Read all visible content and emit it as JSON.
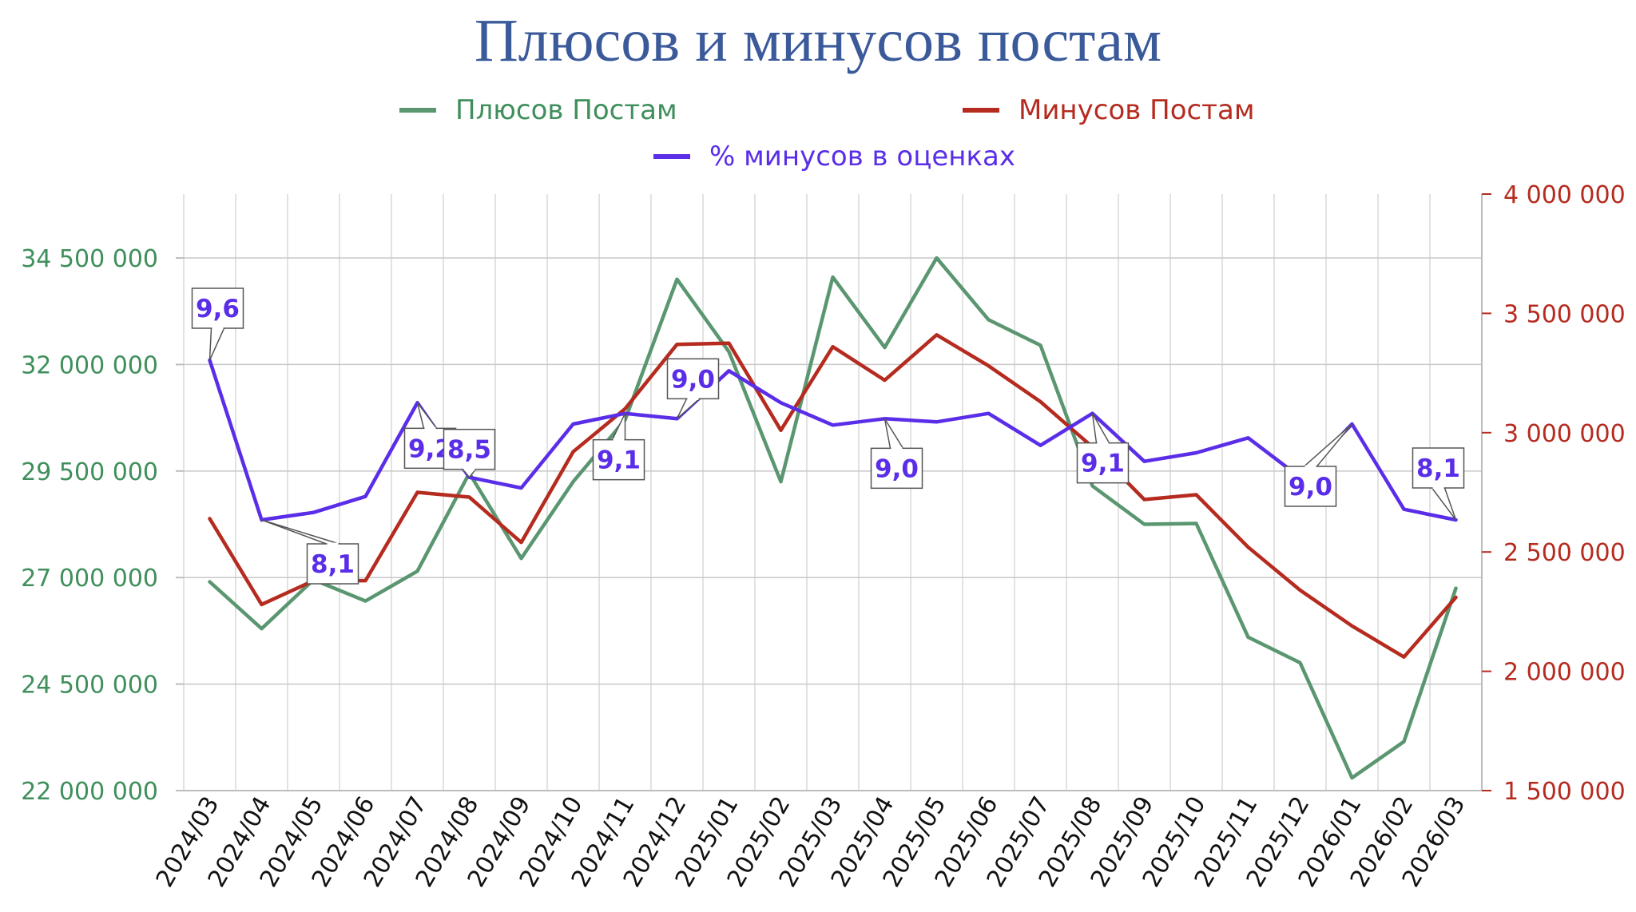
{
  "chart_data": {
    "type": "line",
    "title": "Плюсов и минусов постам",
    "categories": [
      "2024/03",
      "2024/04",
      "2024/05",
      "2024/06",
      "2024/07",
      "2024/08",
      "2024/09",
      "2024/10",
      "2024/11",
      "2024/12",
      "2025/01",
      "2025/02",
      "2025/03",
      "2025/04",
      "2025/05",
      "2025/06",
      "2025/07",
      "2025/08",
      "2025/09",
      "2025/10",
      "2025/11",
      "2025/12",
      "2026/01",
      "2026/02",
      "2026/03"
    ],
    "left_axis": {
      "min": 22000000,
      "max": 36000000,
      "ticks": [
        22000000,
        24500000,
        27000000,
        29500000,
        32000000,
        34500000
      ],
      "tick_labels": [
        "22 000 000",
        "24 500 000",
        "27 000 000",
        "29 500 000",
        "32 000 000",
        "34 500 000"
      ],
      "color": "#3f8f5c"
    },
    "right_axis": {
      "min": 1500000,
      "max": 4000000,
      "ticks": [
        1500000,
        2000000,
        2500000,
        3000000,
        3500000,
        4000000
      ],
      "tick_labels": [
        "1 500 000",
        "2 000 000",
        "2 500 000",
        "3 000 000",
        "3 500 000",
        "4 000 000"
      ],
      "color": "#b52b1f"
    },
    "grid": true,
    "legend_position": "top",
    "series": [
      {
        "name": "Плюсов Постам",
        "axis": "left",
        "color": "#5a9670",
        "values": [
          26900000,
          25800000,
          26950000,
          26450000,
          27150000,
          29450000,
          27450000,
          29250000,
          30700000,
          34000000,
          32300000,
          29250000,
          34050000,
          32400000,
          34500000,
          33050000,
          32450000,
          29150000,
          28250000,
          28270000,
          25600000,
          25000000,
          22300000,
          23150000,
          26750000
        ]
      },
      {
        "name": "Минусов Постам",
        "axis": "right",
        "color": "#b52b1f",
        "values": [
          2640000,
          2280000,
          2380000,
          2380000,
          2750000,
          2730000,
          2540000,
          2920000,
          3100000,
          3370000,
          3375000,
          3010000,
          3360000,
          3220000,
          3410000,
          3280000,
          3130000,
          2940000,
          2720000,
          2740000,
          2520000,
          2340000,
          2190000,
          2060000,
          2310000
        ]
      },
      {
        "name": "% минусов в оценках",
        "axis": "percent",
        "color": "#5a2ee8",
        "values": [
          9.6,
          8.1,
          8.17,
          8.32,
          9.2,
          8.5,
          8.4,
          9.0,
          9.1,
          9.05,
          9.5,
          9.2,
          8.99,
          9.05,
          9.02,
          9.1,
          8.8,
          9.1,
          8.65,
          8.73,
          8.87,
          8.5,
          9.0,
          8.2,
          8.1
        ]
      }
    ],
    "data_labels": [
      {
        "index": 0,
        "text": "9,6"
      },
      {
        "index": 1,
        "text": "8,1"
      },
      {
        "index": 4,
        "text": "9,2"
      },
      {
        "index": 5,
        "text": "8,5"
      },
      {
        "index": 8,
        "text": "9,1"
      },
      {
        "index": 9,
        "text": "9,0"
      },
      {
        "index": 13,
        "text": "9,0"
      },
      {
        "index": 17,
        "text": "9,1"
      },
      {
        "index": 22,
        "text": "9,0"
      },
      {
        "index": 24,
        "text": "8,1"
      }
    ]
  }
}
